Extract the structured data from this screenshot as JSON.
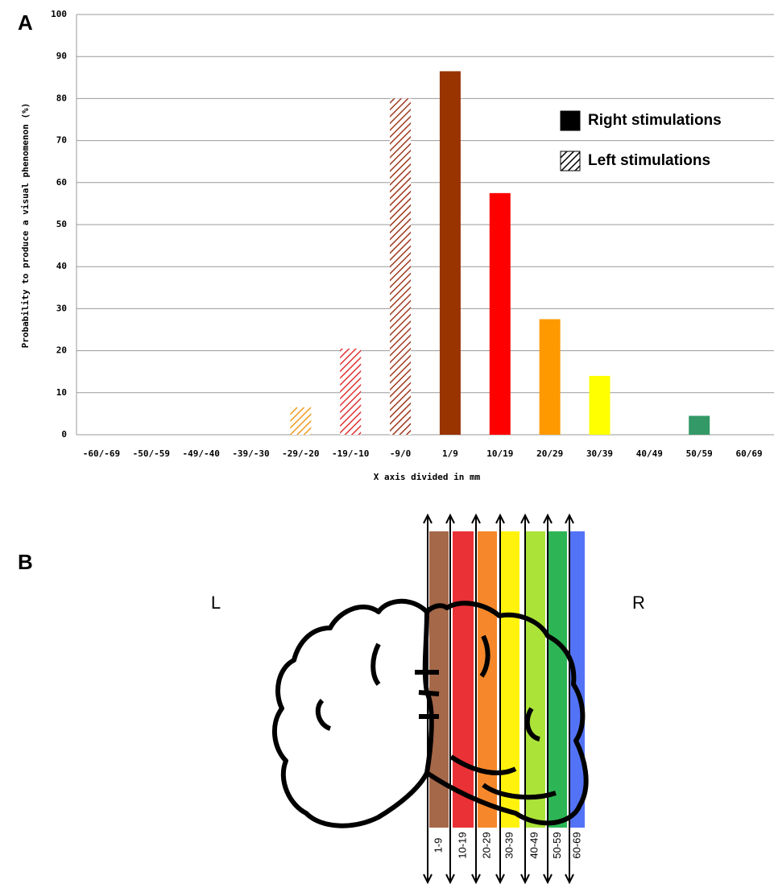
{
  "chart_data": {
    "type": "bar",
    "panel_label": "A",
    "y_label": "Probability to produce a visual phenomenon (%)",
    "x_label": "X axis divided in mm",
    "categories": [
      "-60/-69",
      "-50/-59",
      "-49/-40",
      "-39/-30",
      "-29/-20",
      "-19/-10",
      "-9/0",
      "1/9",
      "10/19",
      "20/29",
      "30/39",
      "40/49",
      "50/59",
      "60/69"
    ],
    "series": [
      {
        "name": "Right stimulations",
        "color": "#000000",
        "hatched": false,
        "values": [
          null,
          null,
          null,
          null,
          null,
          null,
          null,
          86.5,
          57.5,
          27.5,
          14,
          null,
          4.5,
          null
        ],
        "colors": [
          null,
          null,
          null,
          null,
          null,
          null,
          null,
          "#993300",
          "#ff0000",
          "#ff9900",
          "#ffff00",
          null,
          "#339966",
          null
        ]
      },
      {
        "name": "Left stimulations",
        "color": "#000000",
        "hatched": true,
        "values": [
          null,
          null,
          null,
          null,
          6.5,
          20.5,
          80,
          null,
          null,
          null,
          null,
          null,
          null,
          null
        ],
        "colors": [
          null,
          null,
          null,
          null,
          "#ee9a1a",
          "#e03030",
          "#a03a20",
          null,
          null,
          null,
          null,
          null,
          null,
          null
        ]
      }
    ],
    "ylim": [
      0,
      100
    ],
    "yticks": [
      0,
      10,
      20,
      30,
      40,
      50,
      60,
      70,
      80,
      90,
      100
    ],
    "grid": true,
    "legend": "upper right"
  },
  "diagram": {
    "panel_label": "B",
    "left": "L",
    "right": "R",
    "bands": [
      {
        "label": "1-9",
        "color": "#a0603f"
      },
      {
        "label": "10-19",
        "color": "#e8262b"
      },
      {
        "label": "20-29",
        "color": "#f58220"
      },
      {
        "label": "30-39",
        "color": "#fff200"
      },
      {
        "label": "40-49",
        "color": "#a6e22e"
      },
      {
        "label": "50-59",
        "color": "#22b14c"
      },
      {
        "label": "60-69",
        "color": "#4a6cf7"
      }
    ]
  }
}
